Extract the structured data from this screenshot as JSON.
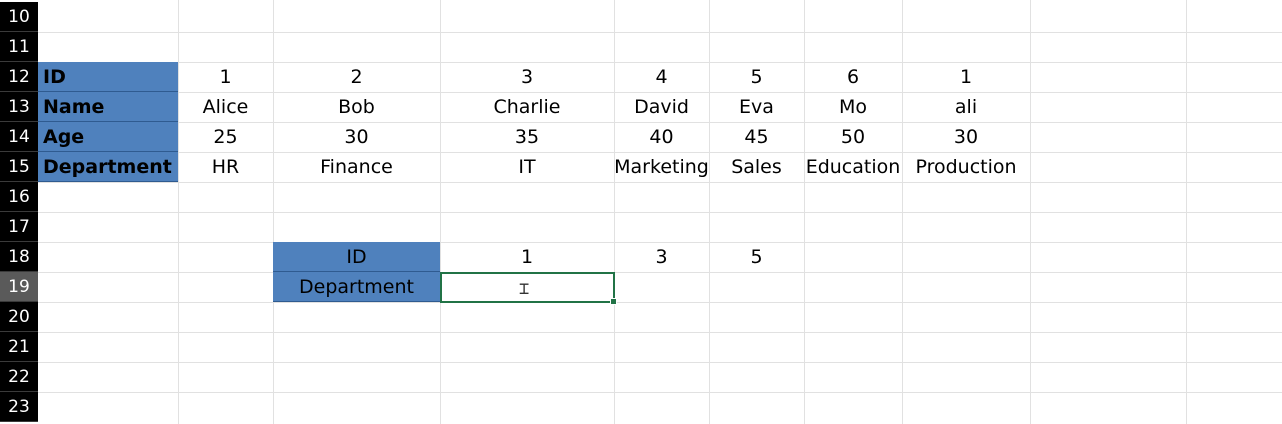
{
  "row_numbers": [
    "10",
    "11",
    "12",
    "13",
    "14",
    "15",
    "16",
    "17",
    "18",
    "19",
    "20",
    "21",
    "22",
    "23"
  ],
  "active_row": "19",
  "table": {
    "headers": [
      "ID",
      "Name",
      "Age",
      "Department"
    ],
    "ids": [
      "1",
      "2",
      "3",
      "4",
      "5",
      "6",
      "1"
    ],
    "names": [
      "Alice",
      "Bob",
      "Charlie",
      "David",
      "Eva",
      "Mo",
      "ali"
    ],
    "ages": [
      "25",
      "30",
      "35",
      "40",
      "45",
      "50",
      "30"
    ],
    "departments": [
      "HR",
      "Finance",
      "IT",
      "Marketing",
      "Sales",
      "Education",
      "Production"
    ]
  },
  "lookup": {
    "id_label": "ID",
    "department_label": "Department",
    "ids": [
      "1",
      "3",
      "5"
    ],
    "department_value": ""
  },
  "colors": {
    "header_fill": "#4f81bd",
    "selection": "#217346"
  },
  "cursor_icon": "text-cursor-icon"
}
